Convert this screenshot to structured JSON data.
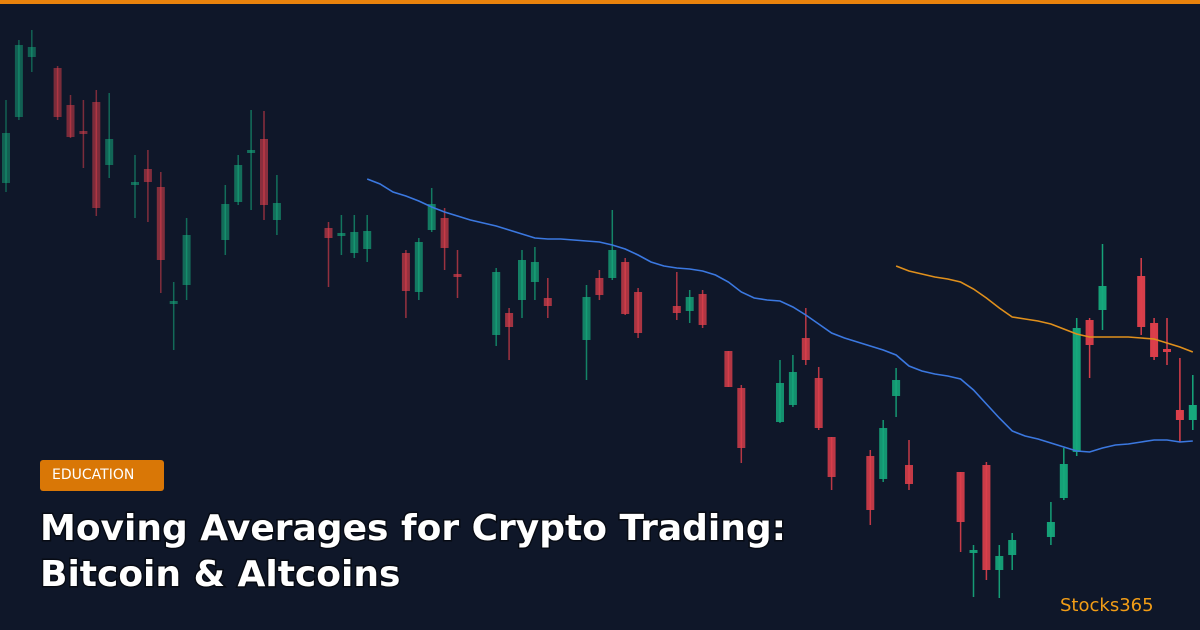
{
  "header": {
    "tag": "EDUCATION",
    "title_lines": [
      "Moving Averages for Crypto Trading:",
      "Bitcoin & Altcoins"
    ]
  },
  "brand": "Stocks365",
  "chart_data": {
    "type": "candlestick",
    "ylim": [
      0,
      630
    ],
    "up_color": "#16a97c",
    "down_color": "#dc3f4b",
    "open": [
      447,
      513,
      573,
      null,
      562,
      525,
      499,
      528,
      465,
      null,
      445,
      461,
      443,
      326,
      345,
      null,
      null,
      390,
      428,
      477,
      491,
      410,
      null,
      null,
      null,
      402,
      394,
      377,
      381,
      null,
      null,
      377,
      338,
      400,
      412,
      356,
      null,
      null,
      295,
      317,
      330,
      348,
      332,
      null,
      null,
      290,
      352,
      352,
      368,
      338,
      null,
      null,
      324,
      319,
      336,
      null,
      279,
      242,
      null,
      null,
      208,
      225,
      292,
      252,
      193,
      null,
      null,
      174,
      151,
      234,
      165,
      null,
      null,
      null,
      158,
      77,
      165,
      60,
      75,
      null,
      null,
      93,
      132,
      178,
      310,
      320,
      null,
      null,
      354,
      307,
      281,
      220,
      210
    ],
    "close": [
      497,
      585,
      583,
      null,
      513,
      493,
      496,
      422,
      491,
      null,
      448,
      448,
      370,
      329,
      395,
      null,
      null,
      426,
      465,
      480,
      425,
      427,
      null,
      null,
      null,
      392,
      397,
      398,
      399,
      null,
      null,
      339,
      388,
      426,
      382,
      353,
      null,
      null,
      358,
      303,
      370,
      368,
      324,
      null,
      null,
      333,
      335,
      380,
      316,
      297,
      null,
      null,
      317,
      333,
      305,
      null,
      243,
      182,
      null,
      null,
      247,
      258,
      270,
      202,
      153,
      null,
      null,
      120,
      202,
      250,
      146,
      null,
      null,
      null,
      108,
      80,
      60,
      74,
      90,
      null,
      null,
      108,
      166,
      302,
      285,
      344,
      null,
      null,
      303,
      273,
      278,
      210,
      225
    ],
    "high": [
      530,
      590,
      600,
      null,
      564,
      535,
      530,
      540,
      537,
      null,
      475,
      480,
      458,
      348,
      412,
      null,
      null,
      445,
      475,
      520,
      519,
      455,
      null,
      null,
      null,
      408,
      415,
      415,
      415,
      null,
      null,
      380,
      392,
      442,
      422,
      380,
      null,
      null,
      362,
      322,
      380,
      383,
      352,
      null,
      null,
      345,
      360,
      420,
      372,
      342,
      null,
      null,
      358,
      340,
      340,
      null,
      279,
      245,
      null,
      null,
      270,
      275,
      322,
      263,
      193,
      null,
      null,
      180,
      210,
      262,
      190,
      null,
      null,
      null,
      158,
      85,
      168,
      85,
      97,
      null,
      null,
      128,
      182,
      312,
      312,
      386,
      null,
      null,
      372,
      312,
      312,
      272,
      255
    ],
    "low": [
      438,
      510,
      558,
      null,
      510,
      492,
      462,
      414,
      452,
      null,
      412,
      408,
      337,
      280,
      330,
      null,
      null,
      375,
      425,
      420,
      410,
      395,
      null,
      null,
      null,
      343,
      375,
      372,
      368,
      null,
      null,
      312,
      330,
      398,
      360,
      332,
      null,
      null,
      284,
      270,
      312,
      330,
      312,
      null,
      null,
      250,
      330,
      350,
      315,
      292,
      null,
      null,
      310,
      307,
      302,
      null,
      243,
      167,
      null,
      null,
      207,
      223,
      265,
      200,
      140,
      null,
      null,
      105,
      148,
      213,
      140,
      null,
      null,
      null,
      78,
      33,
      50,
      32,
      60,
      null,
      null,
      85,
      130,
      174,
      252,
      300,
      null,
      null,
      295,
      270,
      265,
      188,
      200
    ],
    "series": [
      {
        "color": "#3b78e0",
        "values": [
          null,
          null,
          null,
          null,
          null,
          null,
          null,
          null,
          null,
          null,
          null,
          null,
          null,
          null,
          null,
          null,
          null,
          null,
          null,
          null,
          null,
          null,
          null,
          null,
          null,
          null,
          null,
          null,
          451,
          446,
          438,
          434,
          429,
          423,
          418,
          414,
          410,
          407,
          404,
          400,
          396,
          392,
          391,
          391,
          390,
          389,
          388,
          385,
          381,
          375,
          368,
          364,
          362,
          361,
          359,
          355,
          348,
          338,
          332,
          330,
          329,
          323,
          315,
          306,
          297,
          292,
          288,
          284,
          280,
          275,
          264,
          259,
          256,
          254,
          251,
          240,
          226,
          212,
          199,
          194,
          191,
          187,
          183,
          179,
          178,
          182,
          185,
          186,
          188,
          190,
          190,
          188,
          189
        ]
      },
      {
        "color": "#e0901c",
        "values": [
          null,
          null,
          null,
          null,
          null,
          null,
          null,
          null,
          null,
          null,
          null,
          null,
          null,
          null,
          null,
          null,
          null,
          null,
          null,
          null,
          null,
          null,
          null,
          null,
          null,
          null,
          null,
          null,
          null,
          null,
          null,
          null,
          null,
          null,
          null,
          null,
          null,
          null,
          null,
          null,
          null,
          null,
          null,
          null,
          null,
          null,
          null,
          null,
          null,
          null,
          null,
          null,
          null,
          null,
          null,
          null,
          null,
          null,
          null,
          null,
          null,
          null,
          null,
          null,
          null,
          null,
          null,
          null,
          null,
          364,
          359,
          356,
          353,
          351,
          348,
          341,
          332,
          322,
          313,
          311,
          309,
          306,
          301,
          296,
          293,
          293,
          293,
          293,
          292,
          291,
          287,
          283,
          278
        ]
      }
    ]
  }
}
